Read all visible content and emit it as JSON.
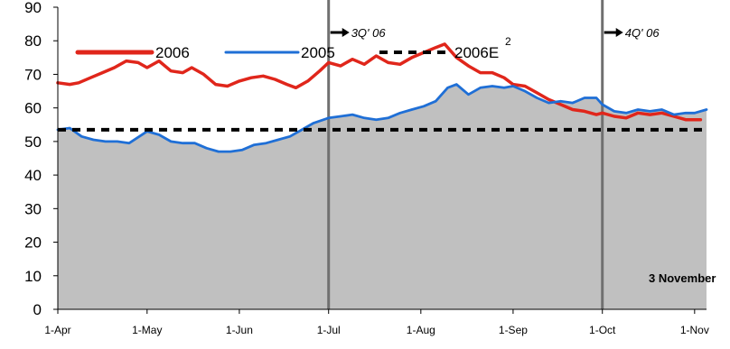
{
  "chart_data": {
    "type": "line",
    "x_axis": {
      "tick_labels": [
        "1-Apr",
        "1-May",
        "1-Jun",
        "1-Jul",
        "1-Aug",
        "1-Sep",
        "1-Oct",
        "1-Nov"
      ],
      "range": [
        "2006-04-01",
        "2006-11-05"
      ]
    },
    "y_axis": {
      "ylim": [
        0,
        90
      ],
      "ticks": [
        0,
        10,
        20,
        30,
        40,
        50,
        60,
        70,
        80,
        90
      ]
    },
    "legend": {
      "placement": "top",
      "entries": [
        "2006",
        "2005",
        "2006E"
      ],
      "superscript": "2"
    },
    "series": [
      {
        "name": "2006",
        "color": "#e0261b",
        "style": "line",
        "points": [
          [
            "2006-04-01",
            67.5
          ],
          [
            "2006-04-05",
            67
          ],
          [
            "2006-04-08",
            67.5
          ],
          [
            "2006-04-12",
            69
          ],
          [
            "2006-04-16",
            70.5
          ],
          [
            "2006-04-20",
            72
          ],
          [
            "2006-04-24",
            74
          ],
          [
            "2006-04-28",
            73.5
          ],
          [
            "2006-05-01",
            72
          ],
          [
            "2006-05-05",
            74
          ],
          [
            "2006-05-09",
            71
          ],
          [
            "2006-05-13",
            70.5
          ],
          [
            "2006-05-16",
            72
          ],
          [
            "2006-05-20",
            70
          ],
          [
            "2006-05-24",
            67
          ],
          [
            "2006-05-28",
            66.5
          ],
          [
            "2006-06-01",
            68
          ],
          [
            "2006-06-05",
            69
          ],
          [
            "2006-06-09",
            69.5
          ],
          [
            "2006-06-13",
            68.5
          ],
          [
            "2006-06-17",
            67
          ],
          [
            "2006-06-20",
            66
          ],
          [
            "2006-06-24",
            68
          ],
          [
            "2006-06-28",
            71
          ],
          [
            "2006-07-01",
            73.5
          ],
          [
            "2006-07-05",
            72.5
          ],
          [
            "2006-07-09",
            74.5
          ],
          [
            "2006-07-13",
            73
          ],
          [
            "2006-07-17",
            75.5
          ],
          [
            "2006-07-21",
            73.5
          ],
          [
            "2006-07-25",
            73
          ],
          [
            "2006-07-29",
            75
          ],
          [
            "2006-08-02",
            76.5
          ],
          [
            "2006-08-06",
            78
          ],
          [
            "2006-08-09",
            79
          ],
          [
            "2006-08-13",
            75
          ],
          [
            "2006-08-17",
            72.5
          ],
          [
            "2006-08-21",
            70.5
          ],
          [
            "2006-08-25",
            70.5
          ],
          [
            "2006-08-29",
            69
          ],
          [
            "2006-09-01",
            67
          ],
          [
            "2006-09-05",
            66.5
          ],
          [
            "2006-09-09",
            64.5
          ],
          [
            "2006-09-13",
            62.5
          ],
          [
            "2006-09-17",
            61
          ],
          [
            "2006-09-21",
            59.5
          ],
          [
            "2006-09-25",
            59
          ],
          [
            "2006-09-29",
            58
          ],
          [
            "2006-10-01",
            58.5
          ],
          [
            "2006-10-05",
            57.5
          ],
          [
            "2006-10-09",
            57
          ],
          [
            "2006-10-13",
            58.5
          ],
          [
            "2006-10-17",
            58
          ],
          [
            "2006-10-21",
            58.5
          ],
          [
            "2006-10-25",
            57.5
          ],
          [
            "2006-10-29",
            56.5
          ],
          [
            "2006-11-01",
            56.5
          ],
          [
            "2006-11-03",
            56.5
          ]
        ]
      },
      {
        "name": "2005",
        "color": "#1f6fd6",
        "style": "line",
        "points": [
          [
            "2006-04-01",
            53.5
          ],
          [
            "2006-04-05",
            54
          ],
          [
            "2006-04-09",
            51.5
          ],
          [
            "2006-04-13",
            50.5
          ],
          [
            "2006-04-17",
            50
          ],
          [
            "2006-04-21",
            50
          ],
          [
            "2006-04-25",
            49.5
          ],
          [
            "2006-05-01",
            53
          ],
          [
            "2006-05-05",
            52
          ],
          [
            "2006-05-09",
            50
          ],
          [
            "2006-05-13",
            49.5
          ],
          [
            "2006-05-17",
            49.5
          ],
          [
            "2006-05-21",
            48
          ],
          [
            "2006-05-25",
            47
          ],
          [
            "2006-05-29",
            47
          ],
          [
            "2006-06-02",
            47.5
          ],
          [
            "2006-06-06",
            49
          ],
          [
            "2006-06-10",
            49.5
          ],
          [
            "2006-06-14",
            50.5
          ],
          [
            "2006-06-18",
            51.5
          ],
          [
            "2006-06-22",
            53.5
          ],
          [
            "2006-06-26",
            55.5
          ],
          [
            "2006-07-01",
            57
          ],
          [
            "2006-07-05",
            57.5
          ],
          [
            "2006-07-09",
            58
          ],
          [
            "2006-07-13",
            57
          ],
          [
            "2006-07-17",
            56.5
          ],
          [
            "2006-07-21",
            57
          ],
          [
            "2006-07-25",
            58.5
          ],
          [
            "2006-07-29",
            59.5
          ],
          [
            "2006-08-02",
            60.5
          ],
          [
            "2006-08-06",
            62
          ],
          [
            "2006-08-10",
            66
          ],
          [
            "2006-08-13",
            67
          ],
          [
            "2006-08-17",
            64
          ],
          [
            "2006-08-21",
            66
          ],
          [
            "2006-08-25",
            66.5
          ],
          [
            "2006-08-29",
            66
          ],
          [
            "2006-09-01",
            66.5
          ],
          [
            "2006-09-05",
            65
          ],
          [
            "2006-09-09",
            63
          ],
          [
            "2006-09-13",
            61.5
          ],
          [
            "2006-09-17",
            62
          ],
          [
            "2006-09-21",
            61.5
          ],
          [
            "2006-09-25",
            63
          ],
          [
            "2006-09-29",
            63
          ],
          [
            "2006-10-01",
            61
          ],
          [
            "2006-10-05",
            59
          ],
          [
            "2006-10-09",
            58.5
          ],
          [
            "2006-10-13",
            59.5
          ],
          [
            "2006-10-17",
            59
          ],
          [
            "2006-10-21",
            59.5
          ],
          [
            "2006-10-25",
            58
          ],
          [
            "2006-10-29",
            58.5
          ],
          [
            "2006-11-01",
            58.5
          ],
          [
            "2006-11-05",
            59.5
          ]
        ]
      },
      {
        "name": "2006E",
        "color": "#000000",
        "style": "dashed",
        "points": [
          [
            "2006-04-01",
            53.5
          ],
          [
            "2006-11-05",
            53.5
          ]
        ]
      }
    ],
    "area": {
      "color": "#c0c0c0",
      "outline_color": "#808080",
      "follows": "2005"
    },
    "vertical_markers": [
      {
        "date": "2006-07-01",
        "label": "3Q' 06",
        "color": "#707070"
      },
      {
        "date": "2006-10-01",
        "label": "4Q' 06",
        "color": "#707070"
      }
    ],
    "annotations": [
      {
        "text": "3 November",
        "placement": "lower-right"
      }
    ],
    "grid": false
  }
}
